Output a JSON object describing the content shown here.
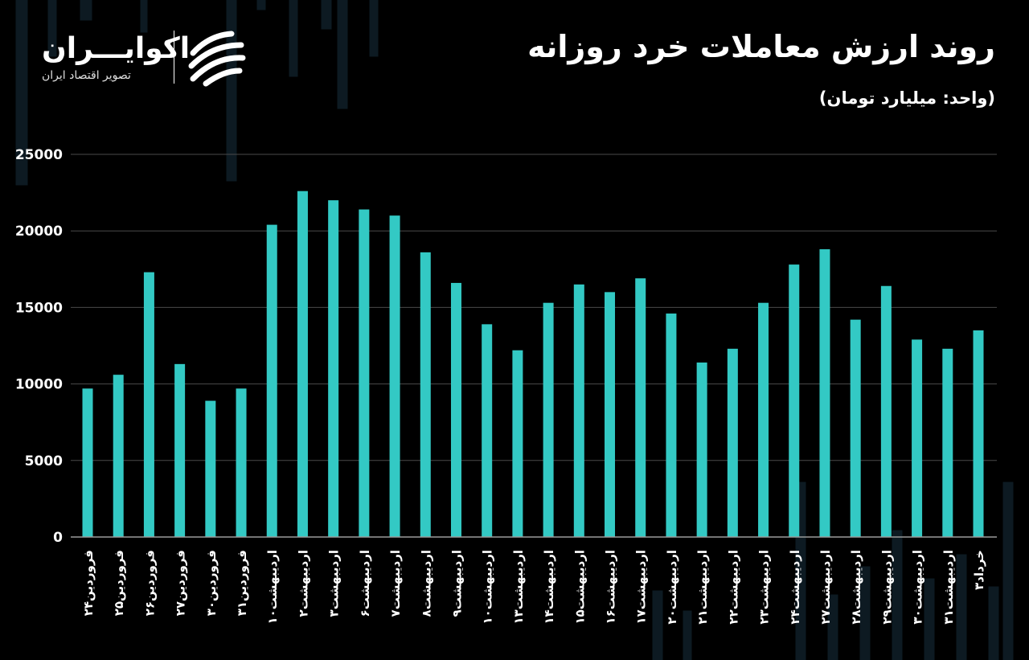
{
  "header": {
    "title": "روند ارزش معاملات خرد روزانه",
    "unit": "(واحد: میلیارد تومان)"
  },
  "brand": {
    "name": "اکوایـــران",
    "tagline": "تصویر اقتصاد ایران"
  },
  "colors": {
    "background": "#000000",
    "bar": "#33c9c4",
    "grid": "#4a4a4a",
    "text": "#ffffff"
  },
  "chart_data": {
    "type": "bar",
    "ylim": [
      0,
      25000
    ],
    "yticks": [
      "0",
      "5000",
      "10000",
      "15000",
      "20000",
      "25000"
    ],
    "grid": true,
    "categories": [
      "فروردین۲۴",
      "فروردین۲۵",
      "فروردین۲۶",
      "فروردین۲۷",
      "فروردین۳۰",
      "فروردین۳۱",
      "اردیبهشت۱۰",
      "اردیبهشت۲",
      "اردیبهشت۳",
      "اردیبهشت۶",
      "اردیبهشت۷",
      "اردیبهشت۸",
      "اردیبهشت۹",
      "اردیبهشت۱۰",
      "اردیبهشت۱۳",
      "اردیبهشت۱۴",
      "اردیبهشت۱۵",
      "اردیبهشت۱۶",
      "اردیبهشت۱۷",
      "اردیبهشت۲۰",
      "اردیبهشت۲۱",
      "اردیبهشت۲۲",
      "اردیبهشت۲۳",
      "اردیبهشت۲۴",
      "اردیبهشت۲۷",
      "اردیبهشت۲۸",
      "اردیبهشت۲۹",
      "اردیبهشت۳۰",
      "اردیبهشت۳۱",
      "خرداد۳"
    ],
    "values": [
      9700,
      10600,
      17300,
      11300,
      8900,
      9700,
      20400,
      22600,
      22000,
      21400,
      21000,
      18600,
      16600,
      13900,
      12200,
      15300,
      16500,
      16000,
      16900,
      14600,
      11400,
      12300,
      15300,
      17800,
      18800,
      14200,
      16400,
      12900,
      12300,
      13500
    ]
  }
}
